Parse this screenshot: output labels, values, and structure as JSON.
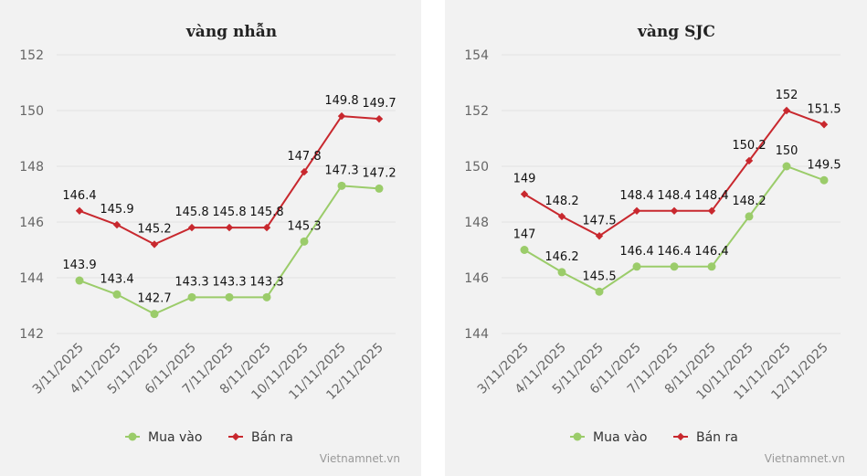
{
  "chart_data": [
    {
      "type": "line",
      "title": "vàng nhẫn",
      "categories": [
        "3/11/2025",
        "4/11/2025",
        "5/11/2025",
        "6/11/2025",
        "7/11/2025",
        "8/11/2025",
        "10/11/2025",
        "11/11/2025",
        "12/11/2025"
      ],
      "series": [
        {
          "name": "Mua vào",
          "color": "#9bcc6a",
          "values": [
            143.9,
            143.4,
            142.7,
            143.3,
            143.3,
            143.3,
            145.3,
            147.3,
            147.2
          ]
        },
        {
          "name": "Bán ra",
          "color": "#c8282e",
          "values": [
            146.4,
            145.9,
            145.2,
            145.8,
            145.8,
            145.8,
            147.8,
            149.8,
            149.7
          ]
        }
      ],
      "ylim": [
        142,
        152
      ],
      "yticks": [
        142,
        144,
        146,
        148,
        150,
        152
      ],
      "grid": true,
      "legend": "bottom",
      "credit": "Vietnamnet.vn"
    },
    {
      "type": "line",
      "title": "vàng SJC",
      "categories": [
        "3/11/2025",
        "4/11/2025",
        "5/11/2025",
        "6/11/2025",
        "7/11/2025",
        "8/11/2025",
        "10/11/2025",
        "11/11/2025",
        "12/11/2025"
      ],
      "series": [
        {
          "name": "Mua vào",
          "color": "#9bcc6a",
          "values": [
            147,
            146.2,
            145.5,
            146.4,
            146.4,
            146.4,
            148.2,
            150,
            149.5
          ]
        },
        {
          "name": "Bán ra",
          "color": "#c8282e",
          "values": [
            149,
            148.2,
            147.5,
            148.4,
            148.4,
            148.4,
            150.2,
            152,
            151.5
          ]
        }
      ],
      "ylim": [
        144,
        154
      ],
      "yticks": [
        144,
        146,
        148,
        150,
        152,
        154
      ],
      "grid": true,
      "legend": "bottom",
      "credit": "Vietnamnet.vn"
    }
  ]
}
